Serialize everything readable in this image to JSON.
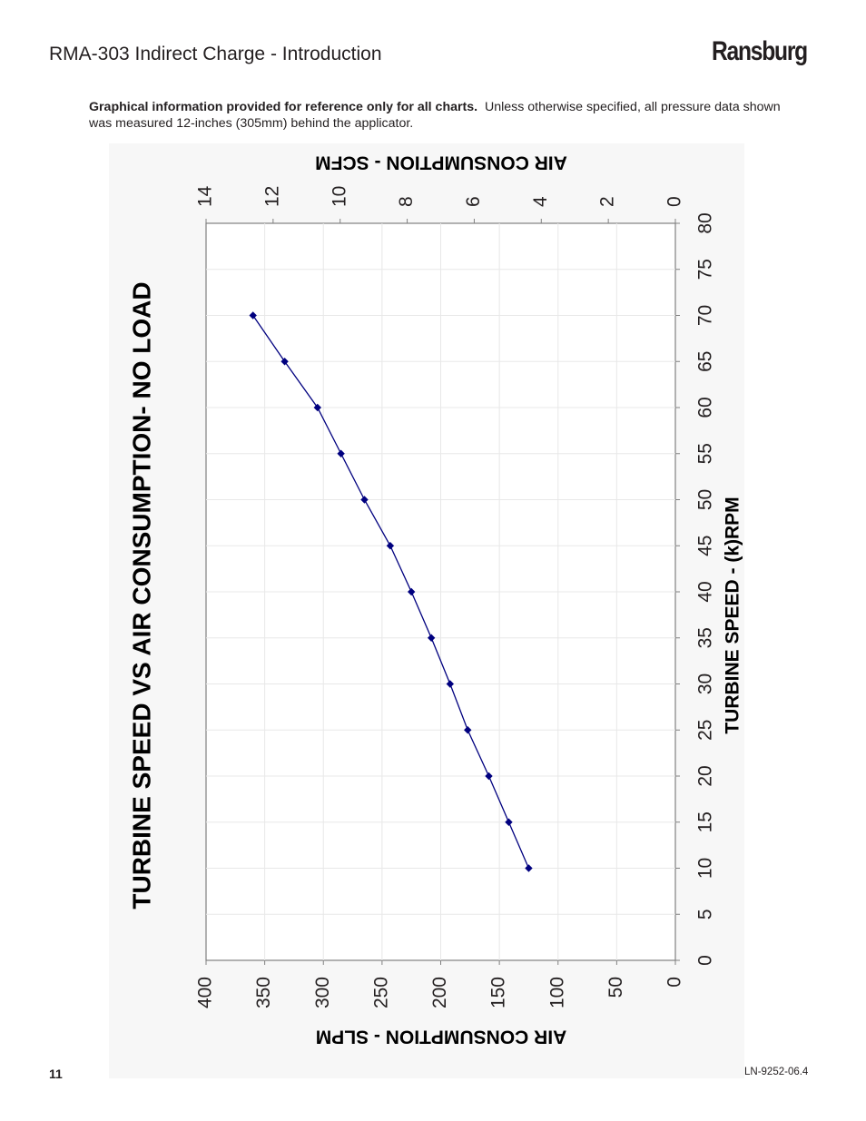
{
  "header": {
    "title": "RMA-303 Indirect Charge - Introduction",
    "brand": "Ransburg"
  },
  "note": {
    "bold": "Graphical information provided for reference only for all charts.",
    "text": "Unless otherwise specified, all pressure data shown was measured 12-inches (305mm) behind the applicator."
  },
  "footer": {
    "page_number": "11",
    "doc_number": "LN-9252-06.4"
  },
  "chart_data": {
    "type": "line",
    "title": "TURBINE SPEED VS AIR CONSUMPTION- NO LOAD",
    "xlabel": "TURBINE SPEED - (k)RPM",
    "ylabel": "AIR CONSUMPTION - SLPM",
    "y2label": "AIR CONSUMPTION - SCFM",
    "xlim": [
      0,
      80
    ],
    "ylim": [
      0,
      400
    ],
    "y2lim": [
      0,
      14
    ],
    "x_ticks": [
      "0",
      "5",
      "10",
      "15",
      "20",
      "25",
      "30",
      "35",
      "40",
      "45",
      "50",
      "55",
      "60",
      "65",
      "70",
      "75",
      "80"
    ],
    "y_ticks": [
      "0",
      "50",
      "100",
      "150",
      "200",
      "250",
      "300",
      "350",
      "400"
    ],
    "y2_ticks": [
      "0",
      "2",
      "4",
      "6",
      "8",
      "10",
      "12",
      "14"
    ],
    "grid": true,
    "series": [
      {
        "color": "#00007f",
        "x": [
          10,
          15,
          20,
          25,
          30,
          35,
          40,
          45,
          50,
          55,
          60,
          65,
          70
        ],
        "y": [
          125,
          142,
          159,
          177,
          192,
          208,
          225,
          243,
          265,
          285,
          305,
          333,
          360
        ]
      }
    ]
  }
}
